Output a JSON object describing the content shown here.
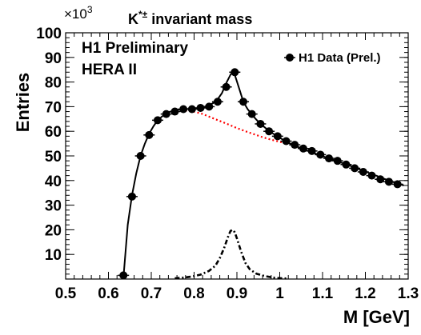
{
  "chart_data": {
    "type": "scatter",
    "title": "K*± invariant mass",
    "title_parts": {
      "base": "K",
      "superscript": "*±",
      "rest": " invariant mass"
    },
    "xlabel": "M [GeV]",
    "ylabel": "Entries",
    "y_scale_label": {
      "base": "×10",
      "exponent": "3"
    },
    "annotations": [
      "H1 Preliminary",
      "HERA II"
    ],
    "xlim": [
      0.5,
      1.3
    ],
    "ylim": [
      0,
      100
    ],
    "x_ticks": [
      0.5,
      0.6,
      0.7,
      0.8,
      0.9,
      1.0,
      1.1,
      1.2,
      1.3
    ],
    "x_tick_labels": [
      "0.5",
      "0.6",
      "0.7",
      "0.8",
      "0.9",
      "1",
      "1.1",
      "1.2",
      "1.3"
    ],
    "y_ticks": [
      10,
      20,
      30,
      40,
      50,
      60,
      70,
      80,
      90,
      100
    ],
    "y_tick_labels": [
      "10",
      "20",
      "30",
      "40",
      "50",
      "60",
      "70",
      "80",
      "90",
      "100"
    ],
    "legend": {
      "position": "top-right",
      "entries": [
        "H1 Data (Prel.)"
      ]
    },
    "grid": false,
    "series": [
      {
        "name": "H1 Data (Prel.)",
        "style": "markers",
        "color": "#000000",
        "x": [
          0.635,
          0.655,
          0.675,
          0.695,
          0.715,
          0.735,
          0.755,
          0.775,
          0.795,
          0.815,
          0.835,
          0.855,
          0.875,
          0.895,
          0.915,
          0.935,
          0.955,
          0.975,
          0.995,
          1.015,
          1.035,
          1.055,
          1.075,
          1.095,
          1.115,
          1.135,
          1.155,
          1.175,
          1.195,
          1.215,
          1.235,
          1.255,
          1.275
        ],
        "y": [
          1.5,
          33.5,
          50,
          58.5,
          64.5,
          67,
          68,
          69,
          69,
          69.5,
          70,
          72,
          78,
          84,
          72,
          67,
          63,
          60,
          58,
          56,
          54.5,
          53,
          52,
          50.5,
          49,
          48,
          46.5,
          45,
          43.5,
          42,
          40.5,
          39.5,
          38.5
        ]
      },
      {
        "role": "total-fit",
        "style": "solid-line",
        "color": "#000000",
        "x": [
          0.635,
          0.645,
          0.655,
          0.665,
          0.675,
          0.685,
          0.695,
          0.705,
          0.715,
          0.725,
          0.735,
          0.745,
          0.755,
          0.765,
          0.775,
          0.785,
          0.795,
          0.805,
          0.815,
          0.825,
          0.835,
          0.845,
          0.855,
          0.865,
          0.875,
          0.885,
          0.89,
          0.895,
          0.905,
          0.915,
          0.925,
          0.935,
          0.945,
          0.955,
          0.965,
          0.975,
          0.985,
          0.995,
          1.015,
          1.035,
          1.055,
          1.075,
          1.095,
          1.115,
          1.135,
          1.155,
          1.175,
          1.195,
          1.215,
          1.235,
          1.255,
          1.275,
          1.29
        ],
        "y": [
          0.5,
          22,
          34,
          43,
          50,
          55,
          59,
          62,
          64.5,
          66,
          67.2,
          68,
          68.5,
          68.8,
          69,
          69.1,
          69.2,
          69.3,
          69.6,
          70,
          70.6,
          71.5,
          73,
          75.5,
          79.5,
          83,
          84,
          83,
          77.5,
          72,
          69,
          66.8,
          64.8,
          63,
          61.6,
          60.2,
          59,
          57.9,
          55.8,
          54.2,
          52.8,
          51.5,
          50.2,
          49,
          47.8,
          46.6,
          45.3,
          44,
          42.7,
          41.3,
          40,
          38.8,
          38
        ]
      },
      {
        "role": "background-fit",
        "style": "dotted-line",
        "color": "#ff0000",
        "x": [
          0.78,
          0.8,
          0.82,
          0.84,
          0.86,
          0.88,
          0.9,
          0.92,
          0.94,
          0.96,
          0.98,
          1.0,
          1.02
        ],
        "y": [
          68.5,
          68,
          67,
          65.6,
          64.2,
          62.8,
          61.3,
          60,
          58.8,
          57.6,
          56.6,
          55.7,
          55
        ]
      },
      {
        "role": "signal-fit",
        "style": "dash-dotted-line",
        "color": "#000000",
        "x": [
          0.755,
          0.775,
          0.795,
          0.815,
          0.835,
          0.85,
          0.86,
          0.87,
          0.88,
          0.885,
          0.89,
          0.895,
          0.9,
          0.91,
          0.92,
          0.93,
          0.945,
          0.965,
          0.985,
          1.005,
          1.02
        ],
        "y": [
          0.3,
          0.6,
          1.0,
          1.8,
          3.3,
          5.5,
          8.5,
          12.5,
          17.5,
          19.5,
          20,
          19,
          16.5,
          11,
          6.5,
          4,
          2.2,
          1.2,
          0.6,
          0.3,
          0.2
        ]
      }
    ]
  }
}
